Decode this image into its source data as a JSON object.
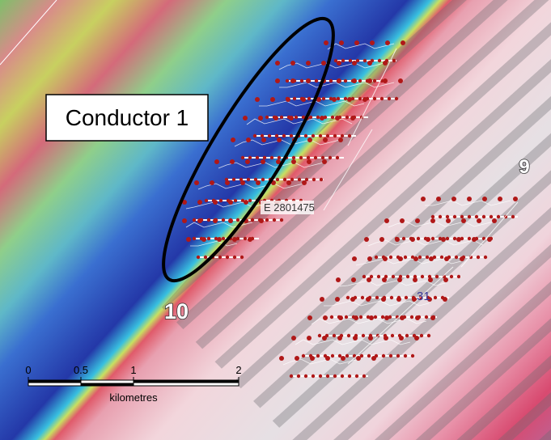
{
  "map": {
    "callout": "Conductor 1",
    "labels": [
      "9",
      "10"
    ],
    "easting_label": "E 2801475",
    "line_label": "31",
    "scale_bar": {
      "ticks": [
        0,
        0.5,
        1,
        2
      ],
      "unit": "kilometres"
    }
  }
}
